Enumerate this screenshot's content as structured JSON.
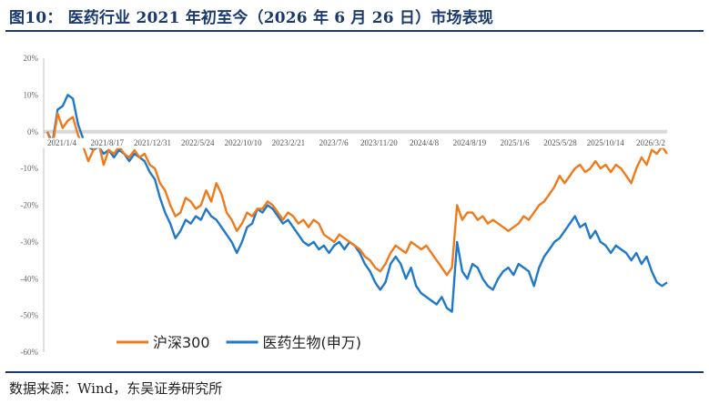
{
  "title": "图10：  医药行业 2021 年初至今（2026 年 6 月 26 日）市场表现",
  "source": "数据来源：Wind，东吴证券研究所",
  "chart_data": {
    "type": "line",
    "ylim": [
      -0.6,
      0.2
    ],
    "y_ticks": [
      "20%",
      "10%",
      "0%",
      "-10%",
      "-20%",
      "-30%",
      "-40%",
      "-50%",
      "-60%"
    ],
    "x_tick_labels": [
      "2021/1/4",
      "2021/8/17",
      "2021/12/31",
      "2022/5/24",
      "2022/10/10",
      "2023/2/21",
      "2023/7/6",
      "2023/11/20",
      "2024/4/8",
      "2024/8/19",
      "2025/1/6",
      "2025/5/28",
      "2025/10/14",
      "2026/3/2"
    ],
    "legend_position": "bottom",
    "series": [
      {
        "name": "沪深300",
        "color": "#f07a1a",
        "values": [
          0,
          -0.04,
          0.05,
          0.01,
          0.03,
          0.04,
          -0.01,
          -0.04,
          -0.08,
          -0.05,
          -0.03,
          -0.09,
          -0.05,
          -0.06,
          -0.04,
          -0.06,
          -0.07,
          -0.05,
          -0.07,
          -0.06,
          -0.09,
          -0.1,
          -0.14,
          -0.16,
          -0.2,
          -0.23,
          -0.22,
          -0.18,
          -0.19,
          -0.21,
          -0.2,
          -0.16,
          -0.19,
          -0.14,
          -0.17,
          -0.22,
          -0.24,
          -0.27,
          -0.25,
          -0.22,
          -0.23,
          -0.21,
          -0.21,
          -0.19,
          -0.2,
          -0.22,
          -0.24,
          -0.22,
          -0.23,
          -0.25,
          -0.24,
          -0.26,
          -0.24,
          -0.25,
          -0.28,
          -0.29,
          -0.3,
          -0.28,
          -0.29,
          -0.3,
          -0.31,
          -0.32,
          -0.34,
          -0.35,
          -0.37,
          -0.38,
          -0.36,
          -0.33,
          -0.31,
          -0.32,
          -0.33,
          -0.3,
          -0.31,
          -0.32,
          -0.31,
          -0.33,
          -0.35,
          -0.37,
          -0.39,
          -0.37,
          -0.2,
          -0.24,
          -0.22,
          -0.22,
          -0.24,
          -0.23,
          -0.25,
          -0.24,
          -0.25,
          -0.26,
          -0.27,
          -0.26,
          -0.25,
          -0.23,
          -0.24,
          -0.22,
          -0.2,
          -0.19,
          -0.17,
          -0.15,
          -0.12,
          -0.14,
          -0.12,
          -0.1,
          -0.09,
          -0.11,
          -0.1,
          -0.08,
          -0.1,
          -0.09,
          -0.11,
          -0.09,
          -0.1,
          -0.12,
          -0.14,
          -0.1,
          -0.07,
          -0.09,
          -0.05,
          -0.06,
          -0.04,
          -0.06
        ]
      },
      {
        "name": "医药生物(申万)",
        "color": "#1f78c8",
        "values": [
          0,
          -0.03,
          0.06,
          0.07,
          0.1,
          0.09,
          0.02,
          -0.02,
          -0.04,
          -0.05,
          -0.04,
          -0.06,
          -0.05,
          -0.07,
          -0.05,
          -0.06,
          -0.08,
          -0.06,
          -0.07,
          -0.08,
          -0.11,
          -0.13,
          -0.18,
          -0.22,
          -0.25,
          -0.29,
          -0.27,
          -0.24,
          -0.25,
          -0.23,
          -0.24,
          -0.21,
          -0.23,
          -0.24,
          -0.26,
          -0.28,
          -0.3,
          -0.33,
          -0.3,
          -0.26,
          -0.25,
          -0.21,
          -0.22,
          -0.2,
          -0.21,
          -0.23,
          -0.25,
          -0.24,
          -0.26,
          -0.28,
          -0.3,
          -0.31,
          -0.3,
          -0.32,
          -0.31,
          -0.33,
          -0.31,
          -0.3,
          -0.32,
          -0.3,
          -0.31,
          -0.33,
          -0.36,
          -0.38,
          -0.41,
          -0.43,
          -0.41,
          -0.36,
          -0.34,
          -0.36,
          -0.4,
          -0.37,
          -0.42,
          -0.44,
          -0.45,
          -0.46,
          -0.47,
          -0.45,
          -0.48,
          -0.49,
          -0.3,
          -0.38,
          -0.4,
          -0.36,
          -0.37,
          -0.4,
          -0.42,
          -0.43,
          -0.4,
          -0.38,
          -0.37,
          -0.39,
          -0.36,
          -0.37,
          -0.38,
          -0.42,
          -0.37,
          -0.34,
          -0.32,
          -0.3,
          -0.29,
          -0.27,
          -0.25,
          -0.23,
          -0.26,
          -0.25,
          -0.29,
          -0.27,
          -0.3,
          -0.31,
          -0.33,
          -0.31,
          -0.32,
          -0.33,
          -0.35,
          -0.33,
          -0.36,
          -0.34,
          -0.38,
          -0.41,
          -0.42,
          -0.41
        ]
      }
    ]
  }
}
